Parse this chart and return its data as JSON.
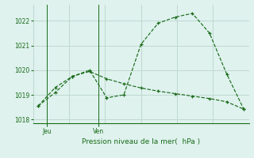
{
  "line1_x": [
    0,
    1,
    2,
    3,
    4,
    5,
    6,
    7,
    8,
    9,
    10,
    11,
    12
  ],
  "line1_y": [
    1018.55,
    1019.1,
    1019.75,
    1020.0,
    1018.88,
    1019.0,
    1021.05,
    1021.9,
    1022.15,
    1022.3,
    1021.5,
    1019.85,
    1018.42
  ],
  "line2_x": [
    0,
    1,
    2,
    3,
    4,
    5,
    6,
    7,
    8,
    9,
    10,
    11,
    12
  ],
  "line2_y": [
    1018.55,
    1019.3,
    1019.75,
    1019.95,
    1019.65,
    1019.45,
    1019.28,
    1019.15,
    1019.05,
    1018.95,
    1018.85,
    1018.72,
    1018.42
  ],
  "color": "#1a6b1a",
  "bg_color": "#dff2ee",
  "grid_color": "#c0d8d0",
  "ylim": [
    1017.85,
    1022.65
  ],
  "yticks": [
    1018,
    1019,
    1020,
    1021,
    1022
  ],
  "xlim": [
    -0.3,
    12.3
  ],
  "jeu_x": 0.5,
  "ven_x": 3.5,
  "xlabel": "Pression niveau de la mer(  hPa )"
}
